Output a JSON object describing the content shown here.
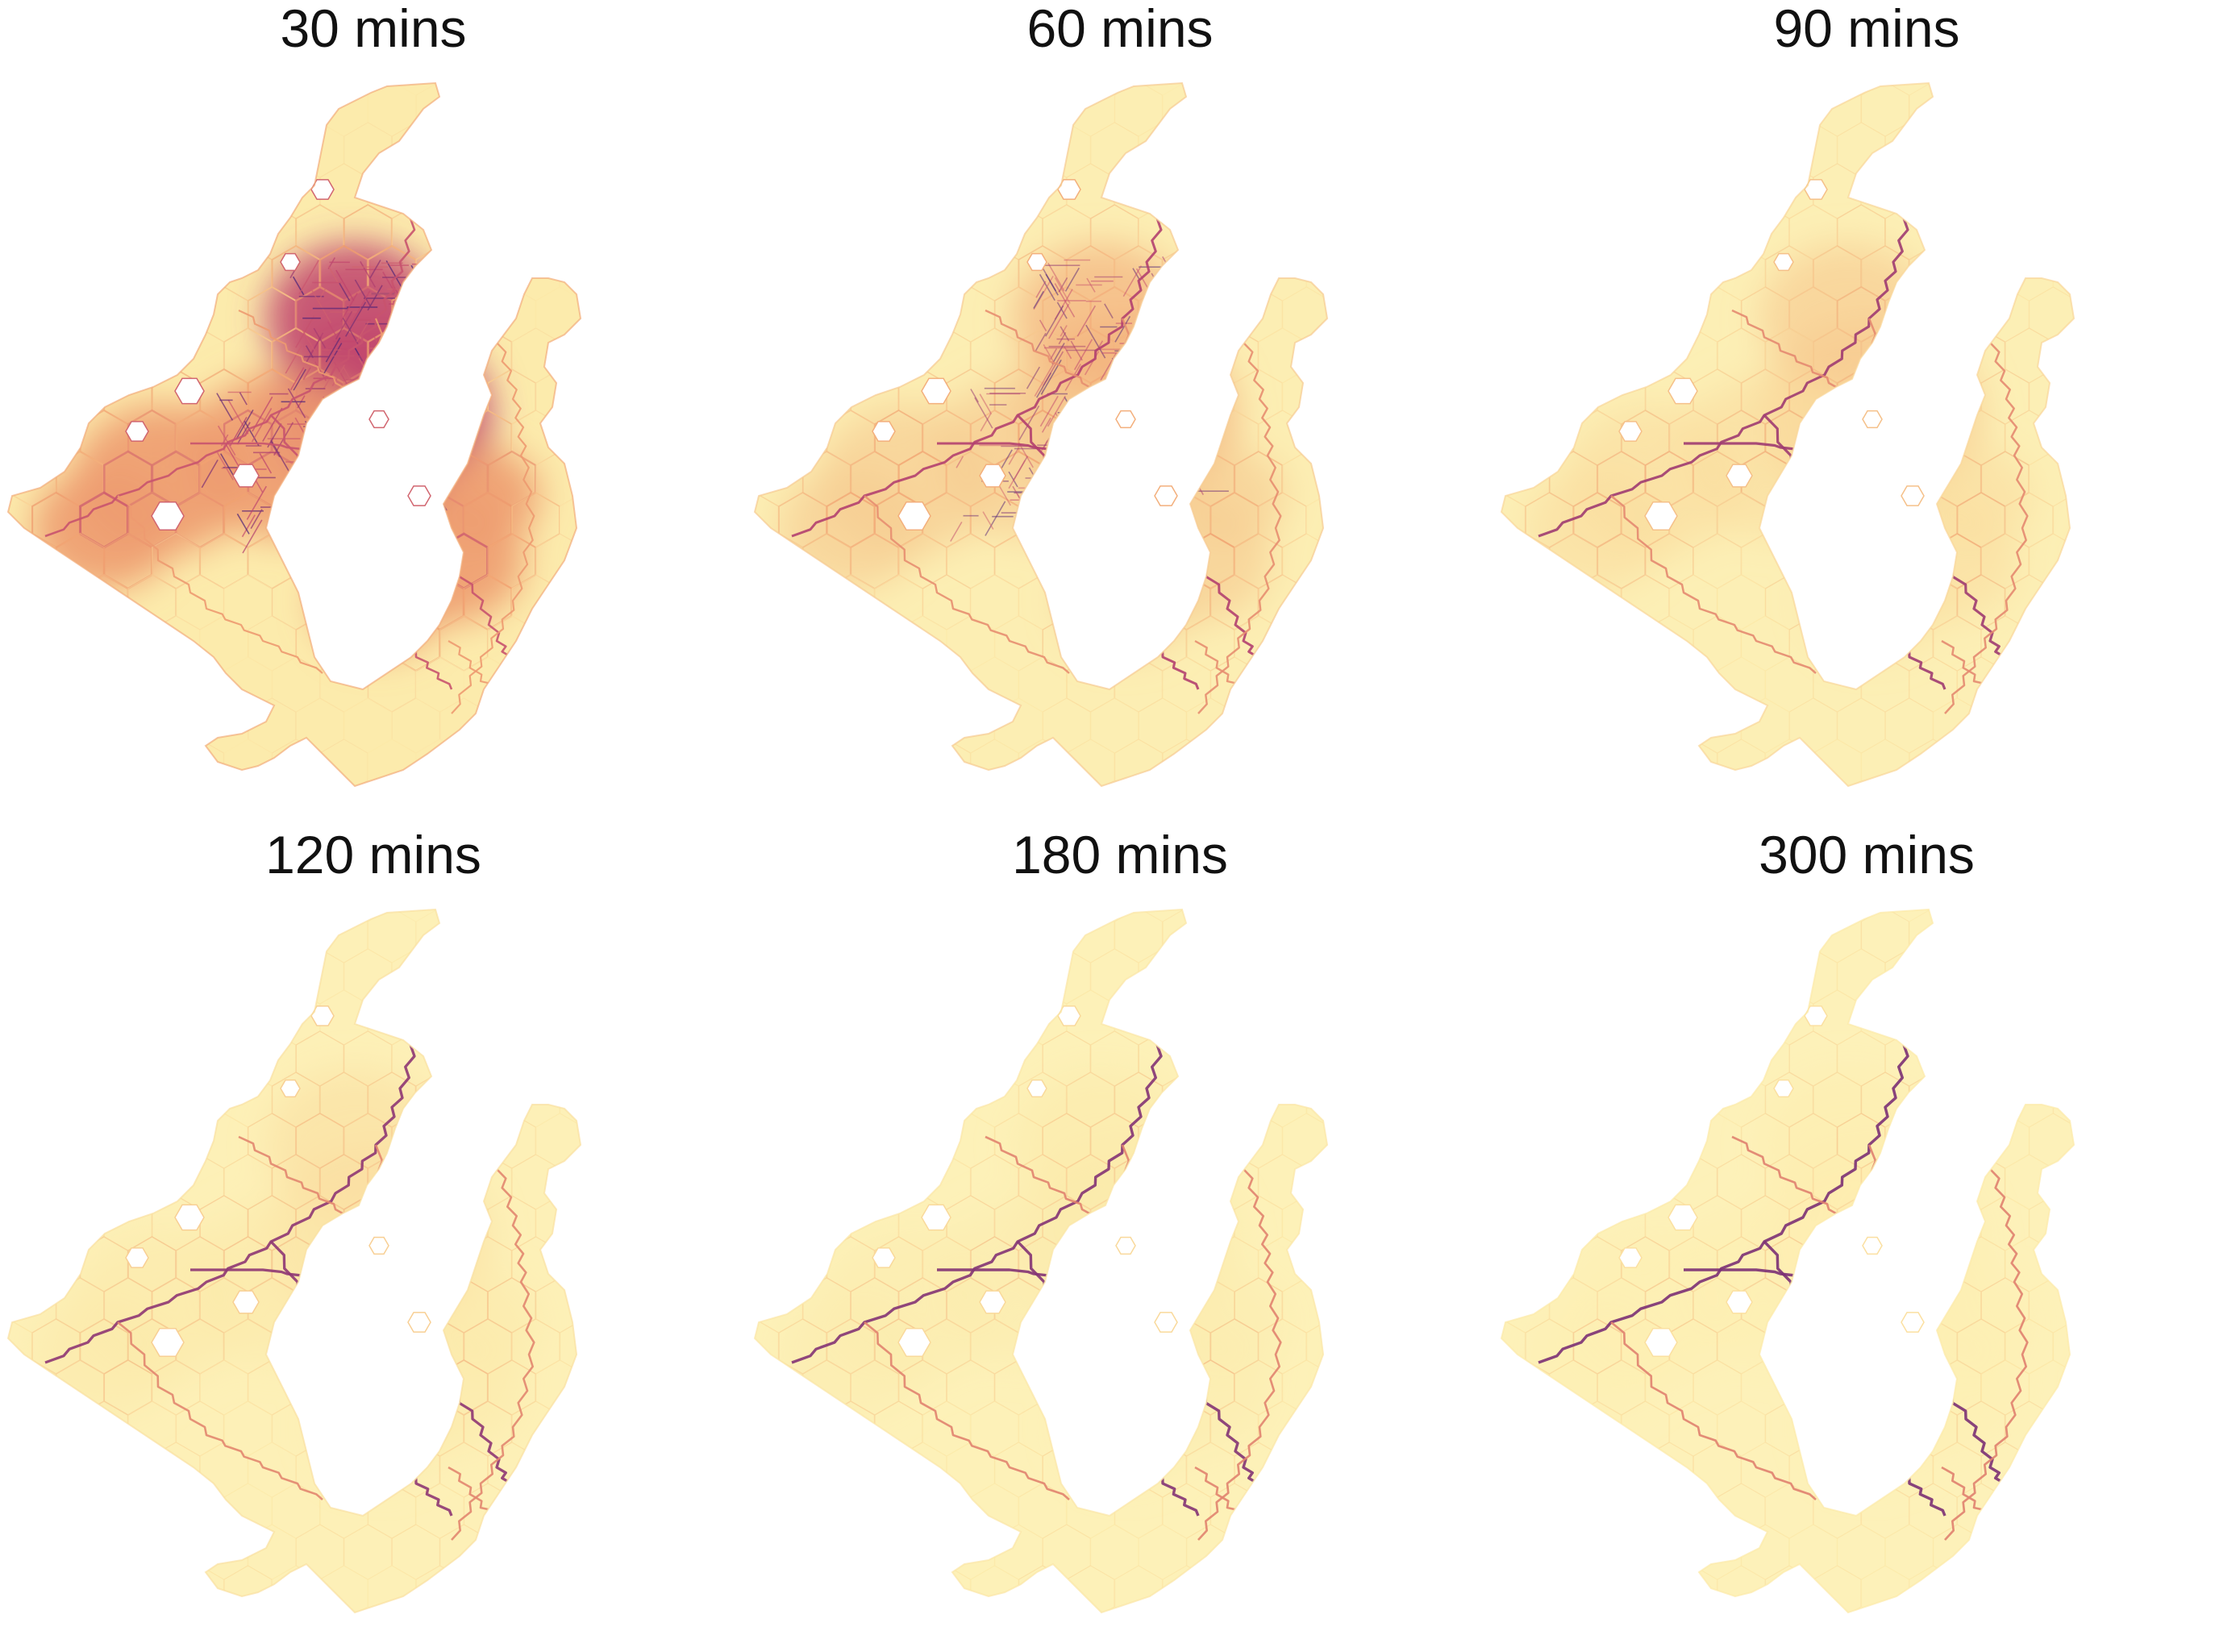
{
  "figure": {
    "panels": [
      {
        "title": "30 mins",
        "intensity": 1.0
      },
      {
        "title": "60 mins",
        "intensity": 0.62
      },
      {
        "title": "90 mins",
        "intensity": 0.48
      },
      {
        "title": "120 mins",
        "intensity": 0.36
      },
      {
        "title": "180 mins",
        "intensity": 0.28
      },
      {
        "title": "300 mins",
        "intensity": 0.22
      }
    ],
    "colors": {
      "land_base": "#fdf6c4",
      "low": "#fce9a8",
      "mid": "#f0a070",
      "high": "#c0446e",
      "max": "#3b1e7a"
    }
  }
}
